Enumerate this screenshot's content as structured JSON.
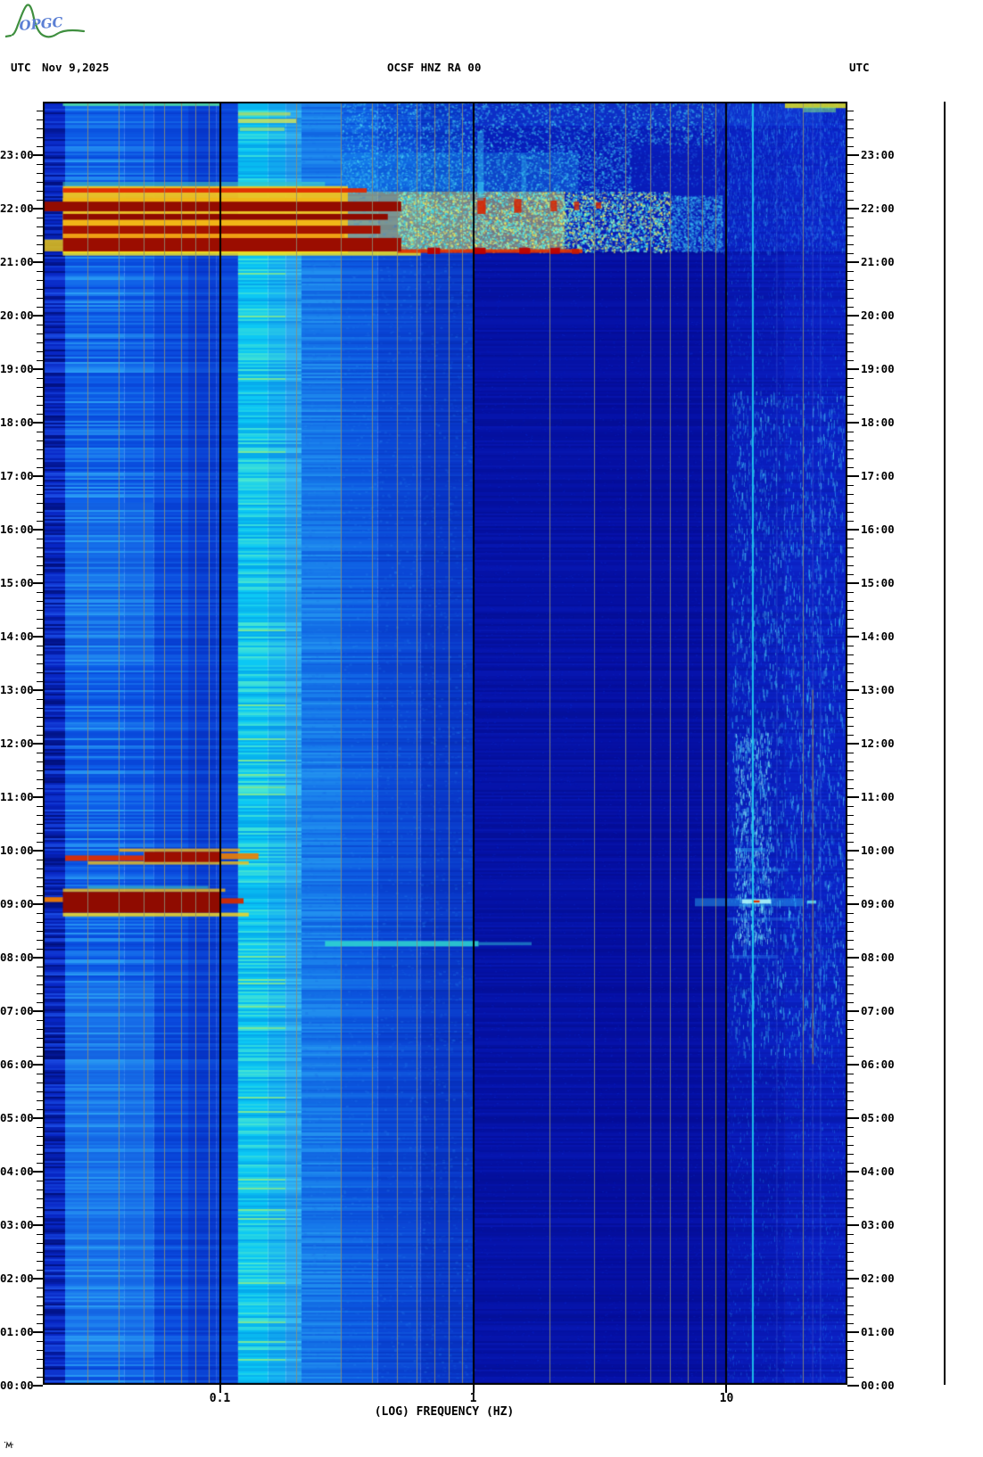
{
  "header": {
    "left_utc": "UTC",
    "date": "Nov 9,2025",
    "center_title": "OCSF HNZ RA 00",
    "right_utc": "UTC"
  },
  "logo": {
    "text": "OPGC",
    "text_color": "#5b7fd4",
    "mountain_color": "#3f8f3f"
  },
  "chart_data": {
    "type": "spectrogram",
    "title": "OCSF HNZ RA 00",
    "xlabel": "(LOG) FREQUENCY (HZ)",
    "x_scale": "log",
    "f_min": 0.02,
    "f_max": 30,
    "x_ticks": [
      {
        "f": 0.1,
        "label": "0.1"
      },
      {
        "f": 1,
        "label": "1"
      },
      {
        "f": 10,
        "label": "10"
      }
    ],
    "y_axis_unit": "UTC time of day, bottom 00:00 to top 24:00, 10-min minor ticks",
    "y_hour_labels": [
      "00:00",
      "01:00",
      "02:00",
      "03:00",
      "04:00",
      "05:00",
      "06:00",
      "07:00",
      "08:00",
      "09:00",
      "10:00",
      "11:00",
      "12:00",
      "13:00",
      "14:00",
      "15:00",
      "16:00",
      "17:00",
      "18:00",
      "19:00",
      "20:00",
      "21:00",
      "22:00",
      "23:00"
    ],
    "grid_minor": [
      0.03,
      0.04,
      0.05,
      0.06,
      0.07,
      0.08,
      0.09,
      0.2,
      0.3,
      0.4,
      0.5,
      0.6,
      0.7,
      0.8,
      0.9,
      2,
      3,
      4,
      5,
      6,
      7,
      8,
      9,
      20
    ],
    "grid_minor_color": "#8e8e76",
    "grid_decades": [
      0.1,
      1,
      10
    ],
    "grid_decade_color": "#000000",
    "bands": [
      {
        "f0": 0.02,
        "f1": 0.0245,
        "base": "#0726c4",
        "light": "#1e52e8",
        "dark": "#000d74",
        "s": 0.85,
        "g": 0
      },
      {
        "f0": 0.0245,
        "f1": 0.042,
        "base": "#0f62ea",
        "light": "#30aaf6",
        "dark": "#0844d8",
        "s": 0.8,
        "g": 0
      },
      {
        "f0": 0.042,
        "f1": 0.055,
        "base": "#0d58e6",
        "light": "#2898f2",
        "dark": "#0740d4",
        "s": 0.72,
        "g": 0
      },
      {
        "f0": 0.055,
        "f1": 0.075,
        "base": "#0a4ade",
        "light": "#1b78ee",
        "dark": "#0536c8",
        "s": 0.62,
        "g": 0
      },
      {
        "f0": 0.075,
        "f1": 0.097,
        "base": "#083cd2",
        "light": "#1562e4",
        "dark": "#042cb8",
        "s": 0.55,
        "g": 0
      },
      {
        "f0": 0.097,
        "f1": 0.118,
        "base": "#0a44da",
        "light": "#1668e6",
        "dark": "#0532c0",
        "s": 0.5,
        "g": 0
      },
      {
        "f0": 0.118,
        "f1": 0.155,
        "base": "#0cc8f4",
        "light": "#55ecca",
        "dark": "#04a2ea",
        "s": 0.85,
        "g": 1,
        "hi": "#a2e868"
      },
      {
        "f0": 0.155,
        "f1": 0.182,
        "base": "#16b4f2",
        "light": "#42e0d8",
        "dark": "#0890e8",
        "s": 0.78,
        "g": 1,
        "hi": "#a2e868"
      },
      {
        "f0": 0.182,
        "f1": 0.21,
        "base": "#28a4ee",
        "light": "#40c8f4",
        "dark": "#1480e4",
        "s": 0.68,
        "g": 1
      },
      {
        "f0": 0.21,
        "f1": 0.3,
        "base": "#1678ea",
        "light": "#2aa0f2",
        "dark": "#0c56da",
        "s": 0.6,
        "g": 2
      },
      {
        "f0": 0.3,
        "f1": 0.42,
        "base": "#0d5ae2",
        "light": "#1a80ec",
        "dark": "#0742cc",
        "s": 0.56,
        "g": 2
      },
      {
        "f0": 0.42,
        "f1": 0.62,
        "base": "#0a46d6",
        "light": "#1464e2",
        "dark": "#0534bc",
        "s": 0.5,
        "g": 2
      },
      {
        "f0": 0.62,
        "f1": 1.0,
        "base": "#0836c8",
        "light": "#104ed6",
        "dark": "#0428a8",
        "s": 0.45,
        "g": 2
      },
      {
        "f0": 1.0,
        "f1": 3.0,
        "base": "#0512a6",
        "light": "#0a1ec0",
        "dark": "#030c88",
        "s": 0.4,
        "g": 3
      },
      {
        "f0": 3.0,
        "f1": 10.0,
        "base": "#050fa2",
        "light": "#0a1abc",
        "dark": "#030a84",
        "s": 0.35,
        "g": 3
      },
      {
        "f0": 10.0,
        "f1": 17.0,
        "base": "#0818b4",
        "light": "#0e28cc",
        "dark": "#041090",
        "s": 0.4,
        "g": 3
      },
      {
        "f0": 17.0,
        "f1": 30.0,
        "base": "#0a1ec0",
        "light": "#1232d4",
        "dark": "#051498",
        "s": 0.45,
        "g": 3
      }
    ],
    "washes": [
      {
        "t0": 21.2,
        "t1": 24,
        "f0": 0.9,
        "f1": 30,
        "c": "#0c2ad0",
        "a": 0.5
      },
      {
        "t0": 21.2,
        "t1": 22.32,
        "f0": 0.32,
        "f1": 2.3,
        "c": "#e8d84a",
        "a": 0.5
      },
      {
        "t0": 22.32,
        "t1": 23.05,
        "f0": 0.3,
        "f1": 2.6,
        "c": "#1a9af0",
        "a": 0.32
      },
      {
        "t0": 23.55,
        "t1": 24,
        "f0": 1,
        "f1": 24,
        "c": "#1650e0",
        "a": 0.35
      },
      {
        "t0": 6,
        "t1": 18.5,
        "f0": 10,
        "f1": 30,
        "c": "#0e2cd0",
        "a": 0.28
      },
      {
        "t0": 0.5,
        "t1": 7.5,
        "f0": 0.0245,
        "f1": 0.055,
        "c": "#2f9ef2",
        "a": 0.3
      },
      {
        "t0": 13.5,
        "t1": 16.5,
        "f0": 0.0245,
        "f1": 0.055,
        "c": "#2f9ef2",
        "a": 0.22
      }
    ],
    "speckles": [
      {
        "t0": 0,
        "t1": 24,
        "f0": 1,
        "f1": 10,
        "n": 9000,
        "c": [
          "#0a2ae0",
          "#0e3ae8"
        ],
        "a": 0.3,
        "w": 2,
        "h": 1
      },
      {
        "t0": 0,
        "t1": 24,
        "f0": 10,
        "f1": 30,
        "n": 8000,
        "c": [
          "#1246e8",
          "#1c68f0",
          "#28a0f4"
        ],
        "a": 0.4,
        "w": 1,
        "h": 3
      },
      {
        "t0": 6.2,
        "t1": 18.6,
        "f0": 10.5,
        "f1": 29,
        "n": 2400,
        "c": [
          "#30b0f4",
          "#55dcf8"
        ],
        "a": 0.7,
        "w": 1,
        "h": 7
      },
      {
        "t0": 8.3,
        "t1": 12.2,
        "f0": 10.8,
        "f1": 15,
        "n": 700,
        "c": [
          "#55dcf8",
          "#90f0f8"
        ],
        "a": 0.8,
        "w": 1,
        "h": 5
      },
      {
        "t0": 0,
        "t1": 24,
        "f0": 0.21,
        "f1": 1.0,
        "n": 4500,
        "c": [
          "#2a8af0",
          "#1866e6"
        ],
        "a": 0.28,
        "w": 3,
        "h": 2
      },
      {
        "t0": 21.2,
        "t1": 22.32,
        "f0": 0.5,
        "f1": 6,
        "n": 5200,
        "c": [
          "#38e0f0",
          "#7ff0cf",
          "#e8e860"
        ],
        "a": 0.9,
        "w": 2,
        "h": 2
      },
      {
        "t0": 21.2,
        "t1": 22.25,
        "f0": 6,
        "f1": 9.6,
        "n": 1300,
        "c": [
          "#2fb0f0",
          "#45d2f2"
        ],
        "a": 0.55,
        "w": 2,
        "h": 2
      },
      {
        "t0": 22.3,
        "t1": 23.2,
        "f0": 0.3,
        "f1": 4.2,
        "n": 2600,
        "c": [
          "#2fb0f0",
          "#48d8f2"
        ],
        "a": 0.6,
        "w": 2,
        "h": 2
      },
      {
        "t0": 23.2,
        "t1": 24,
        "f0": 0.3,
        "f1": 9,
        "n": 2300,
        "c": [
          "#2fb0f0",
          "#50e0f4"
        ],
        "a": 0.55,
        "w": 2,
        "h": 2
      },
      {
        "t0": 21.2,
        "t1": 24,
        "f0": 9,
        "f1": 30,
        "n": 2600,
        "c": [
          "#2668ee",
          "#38a8f4"
        ],
        "a": 0.5,
        "w": 1,
        "h": 4
      },
      {
        "t0": 22.4,
        "t1": 23.6,
        "f0": 2,
        "f1": 9,
        "n": 900,
        "c": [
          "#1e5ce8",
          "#2f86f0"
        ],
        "a": 0.4,
        "w": 2,
        "h": 2
      }
    ],
    "events": [
      {
        "t0": 8.2,
        "t1": 8.3,
        "f0": 0.26,
        "f1": 1.05,
        "c": "#2fd8cf",
        "a": 0.85
      },
      {
        "t0": 8.22,
        "t1": 8.28,
        "f0": 1.05,
        "f1": 1.7,
        "c": "#2fc8e0",
        "a": 0.5
      },
      {
        "t0": 8.76,
        "t1": 8.83,
        "f0": 0.024,
        "f1": 0.13,
        "c": "#f5d51e",
        "a": 0.85
      },
      {
        "t0": 8.83,
        "t1": 9.22,
        "f0": 0.024,
        "f1": 0.1,
        "c": "#8f0b00",
        "a": 1
      },
      {
        "t0": 9.0,
        "t1": 9.1,
        "f0": 0.1,
        "f1": 0.124,
        "c": "#d42a00",
        "a": 0.95
      },
      {
        "t0": 9.03,
        "t1": 9.12,
        "f0": 0.02,
        "f1": 0.024,
        "c": "#ef7a00",
        "a": 0.95
      },
      {
        "t0": 9.22,
        "t1": 9.28,
        "f0": 0.024,
        "f1": 0.105,
        "c": "#f2b815",
        "a": 0.8
      },
      {
        "t0": 9.28,
        "t1": 9.33,
        "f0": 0.03,
        "f1": 0.09,
        "c": "#4ae0b8",
        "a": 0.5
      },
      {
        "t0": 8.95,
        "t1": 9.1,
        "f0": 7.5,
        "f1": 20,
        "c": "#2ab4f2",
        "a": 0.45
      },
      {
        "t0": 9.0,
        "t1": 9.08,
        "f0": 11.5,
        "f1": 15,
        "c": "#aef6f8",
        "a": 0.9
      },
      {
        "t0": 9.02,
        "t1": 9.06,
        "f0": 12.7,
        "f1": 13.5,
        "c": "#d83000",
        "a": 1
      },
      {
        "t0": 9.0,
        "t1": 9.06,
        "f0": 20.8,
        "f1": 22.6,
        "c": "#66ecf8",
        "a": 0.8
      },
      {
        "t0": 9.6,
        "t1": 9.66,
        "f0": 10,
        "f1": 17.5,
        "c": "#2a96f0",
        "a": 0.4
      },
      {
        "t0": 9.97,
        "t1": 10.04,
        "f0": 10.8,
        "f1": 14.2,
        "c": "#32acf2",
        "a": 0.5
      },
      {
        "t0": 8.68,
        "t1": 8.74,
        "f0": 10,
        "f1": 19,
        "c": "#2a8cf0",
        "a": 0.35
      },
      {
        "t0": 7.97,
        "t1": 8.04,
        "f0": 10.3,
        "f1": 16,
        "c": "#2a8cf0",
        "a": 0.35
      },
      {
        "t0": 9.73,
        "t1": 9.79,
        "f0": 0.03,
        "f1": 0.13,
        "c": "#f0c21a",
        "a": 0.8
      },
      {
        "t0": 9.78,
        "t1": 9.97,
        "f0": 0.05,
        "f1": 0.1,
        "c": "#9c0e00",
        "a": 1
      },
      {
        "t0": 9.8,
        "t1": 9.9,
        "f0": 0.0245,
        "f1": 0.05,
        "c": "#dd2d00",
        "a": 0.95
      },
      {
        "t0": 9.83,
        "t1": 9.94,
        "f0": 0.1,
        "f1": 0.142,
        "c": "#ef8000",
        "a": 0.9
      },
      {
        "t0": 9.97,
        "t1": 10.03,
        "f0": 0.04,
        "f1": 0.12,
        "c": "#f2ae12",
        "a": 0.8
      },
      {
        "t0": 21.17,
        "t1": 22.42,
        "f0": 0.024,
        "f1": 0.32,
        "c": "#f2c41e",
        "a": 0.95
      },
      {
        "t0": 21.12,
        "t1": 21.2,
        "f0": 0.024,
        "f1": 0.62,
        "c": "#f0e020",
        "a": 0.85
      },
      {
        "t0": 21.17,
        "t1": 21.24,
        "f0": 0.5,
        "f1": 2.7,
        "c": "#e33000",
        "a": 0.9
      },
      {
        "t0": 21.2,
        "t1": 21.45,
        "f0": 0.024,
        "f1": 0.52,
        "c": "#9b0d00",
        "a": 1
      },
      {
        "t0": 21.45,
        "t1": 21.53,
        "f0": 0.024,
        "f1": 0.31,
        "c": "#f09a10",
        "a": 0.85
      },
      {
        "t0": 21.53,
        "t1": 21.68,
        "f0": 0.024,
        "f1": 0.43,
        "c": "#a31200",
        "a": 1
      },
      {
        "t0": 21.68,
        "t1": 21.79,
        "f0": 0.024,
        "f1": 0.3,
        "c": "#f2b414",
        "a": 0.85
      },
      {
        "t0": 21.79,
        "t1": 21.9,
        "f0": 0.024,
        "f1": 0.46,
        "c": "#8e0a00",
        "a": 1
      },
      {
        "t0": 21.2,
        "t1": 21.42,
        "f0": 0.02,
        "f1": 0.024,
        "c": "#e6c00e",
        "a": 0.85
      },
      {
        "t0": 21.95,
        "t1": 22.13,
        "f0": 0.02,
        "f1": 0.52,
        "c": "#930c00",
        "a": 1
      },
      {
        "t0": 22.13,
        "t1": 22.2,
        "f0": 0.024,
        "f1": 0.3,
        "c": "#f2b414",
        "a": 0.8
      },
      {
        "t0": 22.3,
        "t1": 22.38,
        "f0": 0.024,
        "f1": 0.38,
        "c": "#e02a00",
        "a": 0.95
      },
      {
        "t0": 22.42,
        "t1": 22.5,
        "f0": 0.024,
        "f1": 0.26,
        "c": "#49dfc0",
        "a": 0.55
      },
      {
        "t0": 21.15,
        "t1": 21.27,
        "f0": 0.66,
        "f1": 0.74,
        "c": "#bb0000",
        "a": 0.95
      },
      {
        "t0": 21.15,
        "t1": 21.27,
        "f0": 1.0,
        "f1": 1.12,
        "c": "#bb0000",
        "a": 0.95
      },
      {
        "t0": 21.15,
        "t1": 21.27,
        "f0": 1.52,
        "f1": 1.68,
        "c": "#bb0000",
        "a": 0.9
      },
      {
        "t0": 21.15,
        "t1": 21.27,
        "f0": 2.0,
        "f1": 2.2,
        "c": "#bb0000",
        "a": 0.9
      },
      {
        "t0": 21.15,
        "t1": 21.25,
        "f0": 2.45,
        "f1": 2.62,
        "c": "#c81800",
        "a": 0.85
      },
      {
        "t0": 21.9,
        "t1": 22.2,
        "f0": 1.04,
        "f1": 1.12,
        "c": "#d82200",
        "a": 0.9
      },
      {
        "t0": 21.92,
        "t1": 22.18,
        "f0": 1.45,
        "f1": 1.55,
        "c": "#d82200",
        "a": 0.85
      },
      {
        "t0": 21.95,
        "t1": 22.15,
        "f0": 2.02,
        "f1": 2.14,
        "c": "#d82200",
        "a": 0.85
      },
      {
        "t0": 21.97,
        "t1": 22.13,
        "f0": 2.5,
        "f1": 2.62,
        "c": "#db2800",
        "a": 0.8
      },
      {
        "t0": 22.0,
        "t1": 22.12,
        "f0": 3.05,
        "f1": 3.2,
        "c": "#db2800",
        "a": 0.8
      },
      {
        "t0": 22.28,
        "t1": 22.5,
        "f0": 1.04,
        "f1": 1.1,
        "c": "#35c4f0",
        "a": 0.6
      },
      {
        "t0": 22.15,
        "t1": 23.45,
        "f0": 1.04,
        "f1": 1.1,
        "c": "#30bff0",
        "a": 0.45
      },
      {
        "t0": 22.15,
        "t1": 23.0,
        "f0": 1.55,
        "f1": 1.62,
        "c": "#30bff0",
        "a": 0.35
      },
      {
        "t0": 23.92,
        "t1": 24,
        "f0": 0.024,
        "f1": 0.1,
        "c": "#54e8a2",
        "a": 0.85
      },
      {
        "t0": 23.6,
        "t1": 23.68,
        "f0": 0.118,
        "f1": 0.2,
        "c": "#d8e854",
        "a": 0.8
      },
      {
        "t0": 23.74,
        "t1": 23.8,
        "f0": 0.118,
        "f1": 0.19,
        "c": "#c6e04e",
        "a": 0.7
      },
      {
        "t0": 23.45,
        "t1": 23.52,
        "f0": 0.12,
        "f1": 0.18,
        "c": "#bae860",
        "a": 0.6
      },
      {
        "t0": 23.88,
        "t1": 24,
        "f0": 17,
        "f1": 30,
        "c": "#e0e01e",
        "a": 0.85
      },
      {
        "t0": 23.8,
        "t1": 23.9,
        "f0": 20,
        "f1": 27,
        "c": "#7fe47a",
        "a": 0.55
      }
    ],
    "vlines": [
      {
        "f": 12.7,
        "t0": 0,
        "t1": 24,
        "c": "#22d8f2",
        "a": 0.85,
        "w": 2
      },
      {
        "f": 15.8,
        "t0": 0,
        "t1": 24,
        "c": "#3b5ad6",
        "a": 0.5,
        "w": 1
      },
      {
        "f": 21.9,
        "t0": 0,
        "t1": 24,
        "c": "#8f98d8",
        "a": 0.25,
        "w": 1
      },
      {
        "f": 21.9,
        "t0": 6,
        "t1": 13,
        "c": "#c8a020",
        "a": 0.7,
        "w": 1
      },
      {
        "f": 23.5,
        "t0": 0,
        "t1": 24,
        "c": "#4a78e2",
        "a": 0.45,
        "w": 1
      }
    ]
  }
}
